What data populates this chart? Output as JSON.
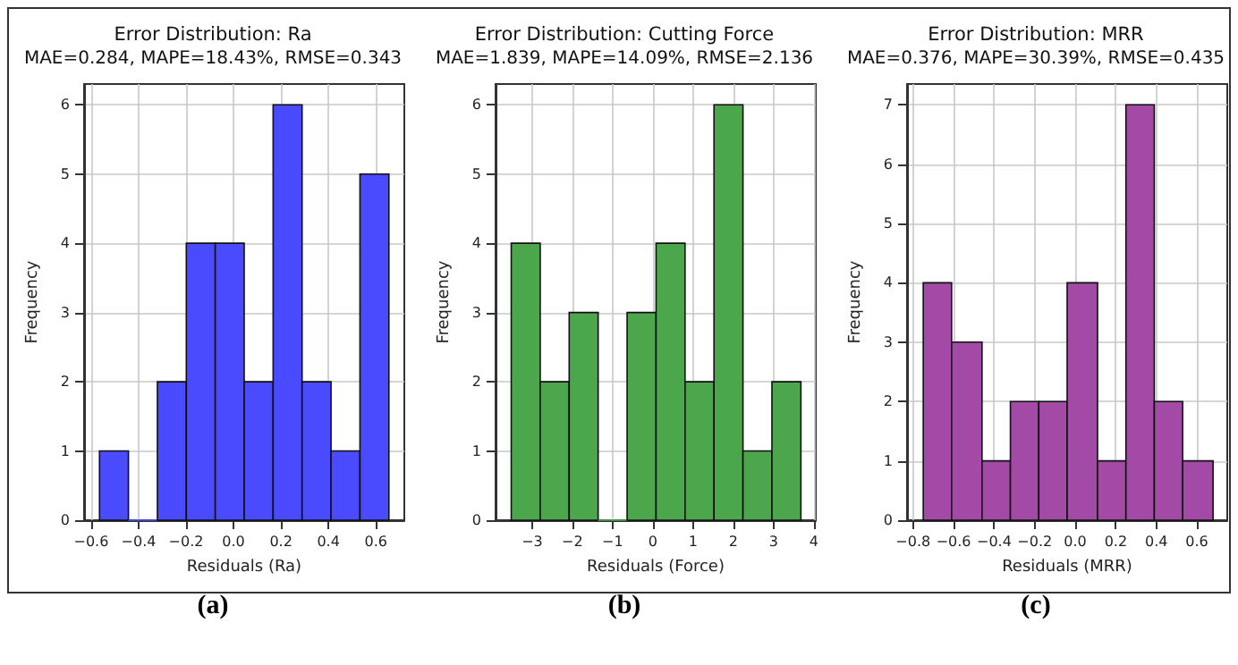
{
  "chart_data": [
    {
      "type": "histogram",
      "title": "Error Distribution: Ra",
      "subtitle": "MAE=0.284, MAPE=18.43%, RMSE=0.343",
      "xlabel": "Residuals (Ra)",
      "ylabel": "Frequency",
      "annotations": [
        "(a)"
      ],
      "color": "#4a4aff",
      "bins": [
        -0.565,
        -0.443,
        -0.321,
        -0.199,
        -0.077,
        0.045,
        0.167,
        0.289,
        0.411,
        0.533,
        0.655
      ],
      "values": [
        1,
        0,
        2,
        4,
        4,
        2,
        6,
        2,
        1,
        5
      ],
      "xlim": [
        -0.63,
        0.72
      ],
      "xticks": [
        {
          "value": -0.6,
          "label": "−0.6"
        },
        {
          "value": -0.4,
          "label": "−0.4"
        },
        {
          "value": -0.2,
          "label": "−0.2"
        },
        {
          "value": 0,
          "label": "0.0"
        },
        {
          "value": 0.2,
          "label": "0.2"
        },
        {
          "value": 0.4,
          "label": "0.4"
        },
        {
          "value": 0.6,
          "label": "0.6"
        }
      ],
      "ylim": [
        0,
        6.3
      ],
      "yticks": [
        0,
        1,
        2,
        3,
        4,
        5,
        6
      ],
      "grid": true
    },
    {
      "type": "histogram",
      "title": "Error Distribution: Cutting Force",
      "subtitle": "MAE=1.839, MAPE=14.09%, RMSE=2.136",
      "xlabel": "Residuals (Force)",
      "ylabel": "Frequency",
      "annotations": [
        "(b)"
      ],
      "color": "#4ca64c",
      "bins": [
        -3.52,
        -2.8,
        -2.08,
        -1.36,
        -0.64,
        0.08,
        0.8,
        1.52,
        2.24,
        2.96,
        3.68
      ],
      "values": [
        4,
        2,
        3,
        0,
        3,
        4,
        2,
        6,
        1,
        2
      ],
      "xlim": [
        -3.91,
        4.05
      ],
      "xticks": [
        {
          "value": -3,
          "label": "−3"
        },
        {
          "value": -2,
          "label": "−2"
        },
        {
          "value": -1,
          "label": "−1"
        },
        0,
        1,
        2,
        3,
        4
      ],
      "ylim": [
        0,
        6.3
      ],
      "yticks": [
        0,
        1,
        2,
        3,
        4,
        5,
        6
      ],
      "grid": true
    },
    {
      "type": "histogram",
      "title": "Error Distribution: MRR",
      "subtitle": "MAE=0.376, MAPE=30.39%, RMSE=0.435",
      "xlabel": "Residuals (MRR)",
      "ylabel": "Frequency",
      "annotations": [
        "(c)"
      ],
      "color": "#a24aa6",
      "bins": [
        -0.75,
        -0.61,
        -0.46,
        -0.32,
        -0.18,
        -0.04,
        0.11,
        0.25,
        0.39,
        0.53,
        0.68
      ],
      "values": [
        4,
        3,
        1,
        2,
        2,
        4,
        1,
        7,
        2,
        1
      ],
      "xlim": [
        -0.83,
        0.75
      ],
      "xticks": [
        {
          "value": -0.8,
          "label": "−0.8"
        },
        {
          "value": -0.6,
          "label": "−0.6"
        },
        {
          "value": -0.4,
          "label": "−0.4"
        },
        {
          "value": -0.2,
          "label": "−0.2"
        },
        {
          "value": 0,
          "label": "0.0"
        },
        {
          "value": 0.2,
          "label": "0.2"
        },
        {
          "value": 0.4,
          "label": "0.4"
        },
        {
          "value": 0.6,
          "label": "0.6"
        }
      ],
      "ylim": [
        0,
        7.35
      ],
      "yticks": [
        0,
        1,
        2,
        3,
        4,
        5,
        6,
        7
      ],
      "grid": true
    }
  ]
}
